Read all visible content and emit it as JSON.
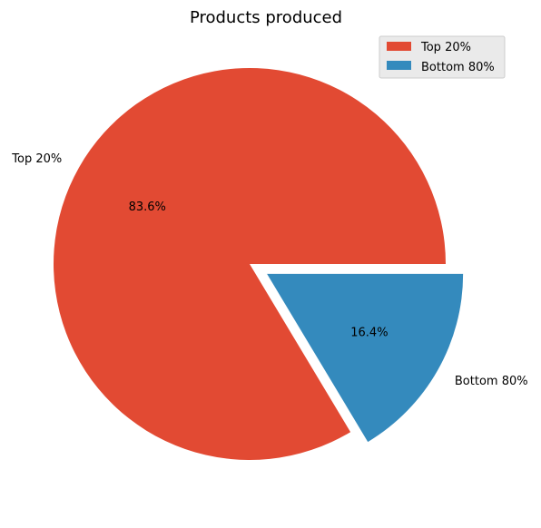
{
  "chart_data": {
    "type": "pie",
    "title": "Products produced",
    "categories": [
      "Top 20%",
      "Bottom 80%"
    ],
    "values": [
      83.6,
      16.4
    ],
    "percent_labels": [
      "83.6%",
      "16.4%"
    ],
    "colors": [
      "#E24A33",
      "#348ABD"
    ],
    "exploded": [
      false,
      true
    ],
    "legend": {
      "placement": "top-right",
      "entries": [
        "Top 20%",
        "Bottom 80%"
      ]
    }
  }
}
